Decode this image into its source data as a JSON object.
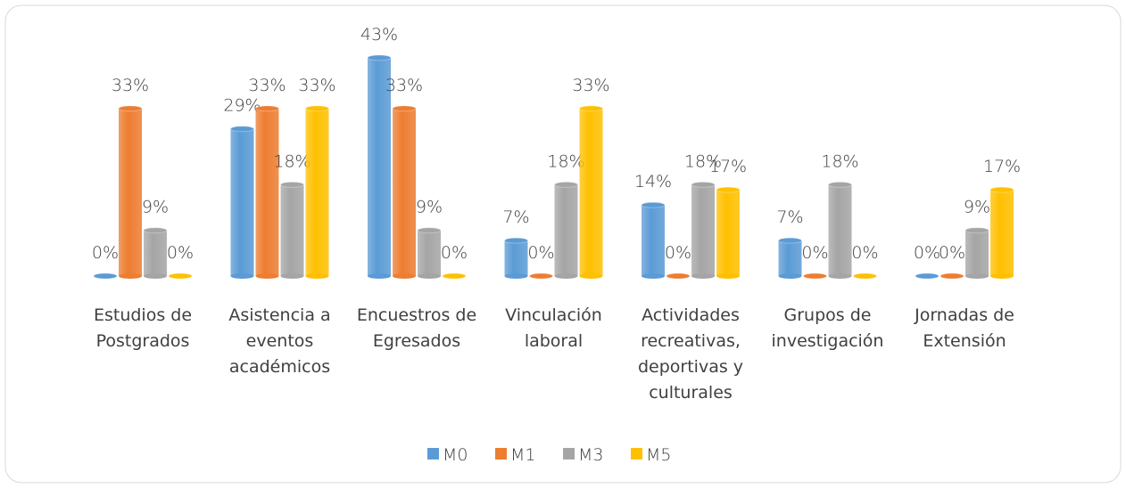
{
  "chart_data": {
    "type": "bar",
    "categories": [
      "Estudios de Postgrados",
      "Asistencia a eventos académicos",
      "Encuestros de Egresados",
      "Vinculación laboral",
      "Actividades recreativas, deportivas y culturales",
      "Grupos de investigación",
      "Jornadas de Extensión"
    ],
    "series": [
      {
        "name": "M0",
        "color": "#5b9bd5",
        "values": [
          0,
          29,
          43,
          7,
          14,
          7,
          0
        ],
        "value_labels": [
          "0%",
          "29%",
          "43%",
          "7%",
          "14%",
          "7%",
          "0%"
        ]
      },
      {
        "name": "M1",
        "color": "#ed7d31",
        "values": [
          33,
          33,
          33,
          0,
          0,
          0,
          0
        ],
        "value_labels": [
          "33%",
          "33%",
          "33%",
          "0%",
          "0%",
          "0%",
          "0%"
        ]
      },
      {
        "name": "M3",
        "color": "#a5a5a5",
        "values": [
          9,
          18,
          9,
          18,
          18,
          18,
          9
        ],
        "value_labels": [
          "9%",
          "18%",
          "9%",
          "18%",
          "18%",
          "18%",
          "9%"
        ]
      },
      {
        "name": "M5",
        "color": "#ffc000",
        "values": [
          0,
          33,
          0,
          33,
          17,
          0,
          17
        ],
        "value_labels": [
          "0%",
          "33%",
          "0%",
          "33%",
          "17%",
          "0%",
          "17%"
        ]
      }
    ],
    "legend": "bottom"
  }
}
